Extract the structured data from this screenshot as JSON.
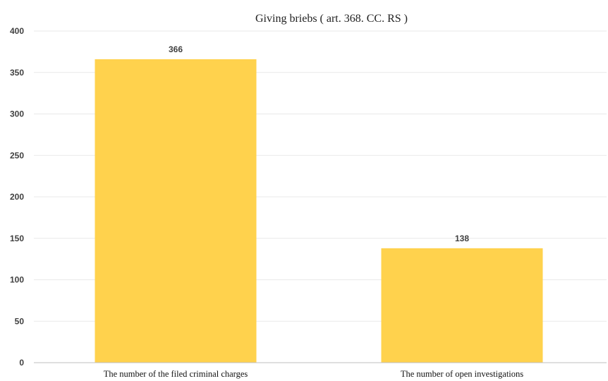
{
  "chart_data": {
    "type": "bar",
    "title": "Giving briebs ( art. 368. CC. RS )",
    "xlabel": "",
    "ylabel": "",
    "categories": [
      "The number of the filed criminal charges",
      "The number of open investigations"
    ],
    "values": [
      366,
      138
    ],
    "data_labels": [
      "366",
      "138"
    ],
    "ylim": [
      0,
      400
    ],
    "yticks": [
      0,
      50,
      100,
      150,
      200,
      250,
      300,
      350,
      400
    ],
    "grid": true,
    "legend": "none",
    "colors": {
      "bar": "#FFD24D",
      "grid": "#e9e9e9",
      "axis": "#bfbfbf"
    }
  }
}
